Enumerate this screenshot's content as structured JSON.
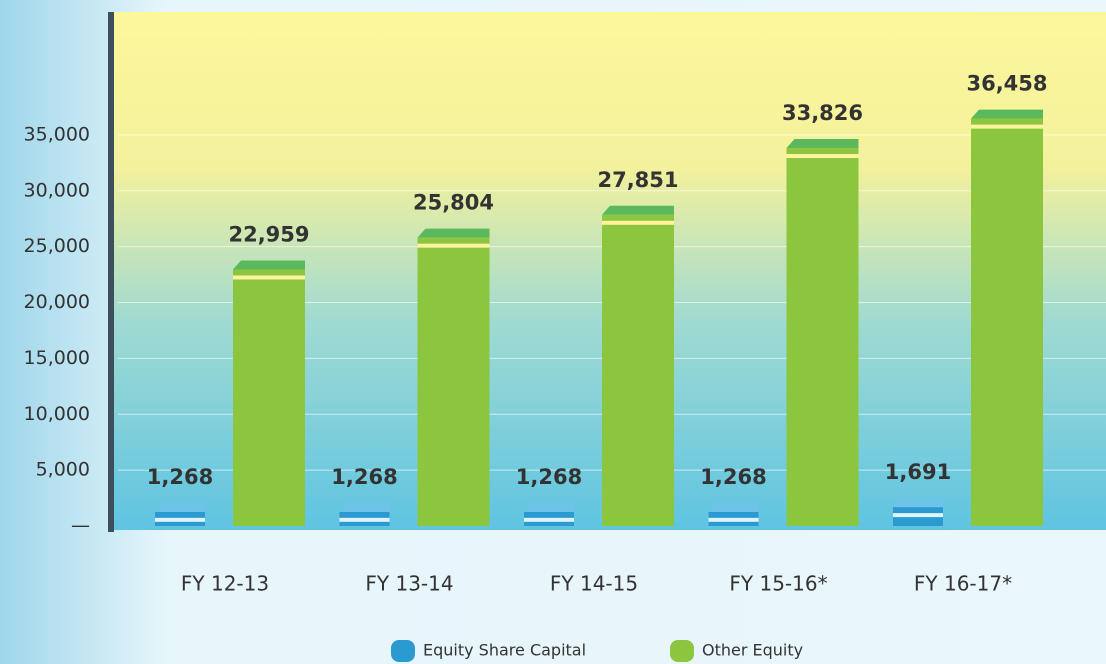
{
  "chart_data": {
    "type": "bar",
    "categories": [
      "FY 12-13",
      "FY 13-14",
      "FY 14-15",
      "FY 15-16*",
      "FY 16-17*"
    ],
    "series": [
      {
        "name": "Equity Share Capital",
        "color": "#2a9ad0",
        "values": [
          1268,
          1268,
          1268,
          1268,
          1691
        ],
        "value_labels": [
          "1,268",
          "1,268",
          "1,268",
          "1,268",
          "1,691"
        ]
      },
      {
        "name": "Other Equity",
        "color": "#8cc63f",
        "values": [
          22959,
          25804,
          27851,
          33826,
          36458
        ],
        "value_labels": [
          "22,959",
          "25,804",
          "27,851",
          "33,826",
          "36,458"
        ]
      }
    ],
    "ylim": [
      0,
      46000
    ],
    "yticks": [
      {
        "value": 0,
        "label": "—"
      },
      {
        "value": 5000,
        "label": "5,000"
      },
      {
        "value": 10000,
        "label": "10,000"
      },
      {
        "value": 15000,
        "label": "15,000"
      },
      {
        "value": 20000,
        "label": "20,000"
      },
      {
        "value": 25000,
        "label": "25,000"
      },
      {
        "value": 30000,
        "label": "30,000"
      },
      {
        "value": 35000,
        "label": "35,000"
      }
    ],
    "grid": true,
    "legend": "bottom"
  }
}
